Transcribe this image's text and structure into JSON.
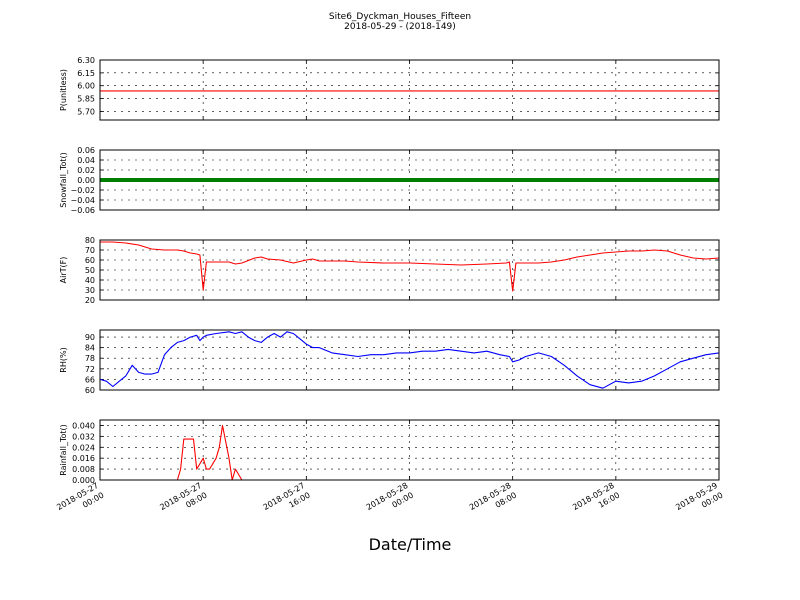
{
  "title": "Site6_Dyckman_Houses_Fifteen",
  "subtitle": "2018-05-29 - (2018-149)",
  "xlabel": "Date/Time",
  "x_ticks": [
    [
      "2018-05-27",
      "00:00"
    ],
    [
      "2018-05-27",
      "08:00"
    ],
    [
      "2018-05-27",
      "16:00"
    ],
    [
      "2018-05-28",
      "00:00"
    ],
    [
      "2018-05-28",
      "08:00"
    ],
    [
      "2018-05-28",
      "16:00"
    ],
    [
      "2018-05-29",
      "00:00"
    ]
  ],
  "chart_data": [
    {
      "type": "line",
      "ylabel": "P(unitless)",
      "ylim": [
        5.6,
        6.3
      ],
      "yticks": [
        "6.30",
        "6.15",
        "6.00",
        "5.85",
        "5.70"
      ],
      "ytick_values": [
        6.3,
        6.15,
        6.0,
        5.85,
        5.7
      ],
      "grid": true,
      "color": "#ff0000",
      "x_hours": [
        0,
        48
      ],
      "values": [
        5.94,
        5.94
      ]
    },
    {
      "type": "scatter",
      "ylabel": "Snowfall_Tot()",
      "ylim": [
        -0.06,
        0.06
      ],
      "yticks": [
        "0.06",
        "0.04",
        "0.02",
        "0.00",
        "−0.02",
        "−0.04",
        "−0.06"
      ],
      "ytick_values": [
        0.06,
        0.04,
        0.02,
        0.0,
        -0.02,
        -0.04,
        -0.06
      ],
      "grid": true,
      "color": "#007f00",
      "x_hours": [
        0,
        48
      ],
      "values": [
        0.0,
        0.0
      ]
    },
    {
      "type": "line",
      "ylabel": "AirT(F)",
      "ylim": [
        20,
        80
      ],
      "yticks": [
        "80",
        "70",
        "60",
        "50",
        "40",
        "30",
        "20"
      ],
      "ytick_values": [
        80,
        70,
        60,
        50,
        40,
        30,
        20
      ],
      "grid": true,
      "color": "#ff0000",
      "x_hours": [
        0,
        1,
        2,
        3,
        4,
        5,
        6,
        6.5,
        7,
        7.5,
        7.75,
        8,
        8.25,
        9,
        10,
        10.5,
        11,
        12,
        12.5,
        13,
        14,
        15,
        16,
        16.5,
        17,
        18,
        19,
        20,
        22,
        24,
        26,
        28,
        30,
        31.5,
        31.75,
        32,
        32.25,
        33,
        34,
        35,
        36,
        37,
        38,
        39,
        40,
        41,
        42,
        43,
        44,
        45,
        46,
        47,
        48
      ],
      "values": [
        78,
        78,
        77,
        75,
        71,
        70,
        70,
        69,
        67,
        66,
        65,
        30,
        58,
        58,
        58,
        56,
        57,
        62,
        63,
        61,
        60,
        57,
        60,
        61,
        59,
        59,
        59,
        58,
        57,
        57,
        56,
        55,
        56,
        57,
        58,
        29,
        57,
        57,
        57,
        58,
        60,
        63,
        65,
        67,
        68,
        69,
        69,
        70,
        69,
        65,
        62,
        61,
        62
      ]
    },
    {
      "type": "line",
      "ylabel": "RH(%)",
      "ylim": [
        60,
        94
      ],
      "yticks": [
        "90",
        "84",
        "78",
        "72",
        "66",
        "60"
      ],
      "ytick_values": [
        90,
        84,
        78,
        72,
        66,
        60
      ],
      "grid": true,
      "color": "#0000ff",
      "x_hours": [
        0,
        0.5,
        1,
        1.5,
        2,
        2.5,
        3,
        3.5,
        4,
        4.5,
        5,
        5.5,
        6,
        6.5,
        7,
        7.5,
        7.75,
        8,
        8.25,
        9,
        10,
        10.5,
        11,
        11.5,
        12,
        12.5,
        13,
        13.5,
        14,
        14.5,
        15,
        15.5,
        16,
        16.5,
        17,
        18,
        19,
        20,
        21,
        22,
        23,
        24,
        25,
        26,
        27,
        28,
        29,
        30,
        31,
        31.75,
        32,
        32.5,
        33,
        34,
        35,
        36,
        37,
        38,
        39,
        40,
        41,
        42,
        43,
        44,
        45,
        46,
        47,
        48
      ],
      "values": [
        66,
        65,
        62,
        65,
        68,
        74,
        70,
        69,
        69,
        70,
        80,
        84,
        87,
        88,
        90,
        91,
        88,
        90,
        91,
        92,
        93,
        92,
        93,
        90,
        88,
        87,
        90,
        92,
        90,
        93,
        92,
        89,
        86,
        84,
        84,
        81,
        80,
        79,
        80,
        80,
        81,
        81,
        82,
        82,
        83,
        82,
        81,
        82,
        80,
        79,
        76,
        77,
        79,
        81,
        79,
        74,
        68,
        63,
        61,
        65,
        64,
        65,
        68,
        72,
        76,
        78,
        80,
        81
      ]
    },
    {
      "type": "line",
      "ylabel": "Rainfall_Tot()",
      "ylim": [
        0,
        0.044
      ],
      "yticks": [
        "0.040",
        "0.032",
        "0.024",
        "0.016",
        "0.008",
        "0.000"
      ],
      "ytick_values": [
        0.04,
        0.032,
        0.024,
        0.016,
        0.008,
        0.0
      ],
      "grid": true,
      "color": "#ff0000",
      "x_hours": [
        0,
        6,
        6.25,
        6.5,
        7,
        7.25,
        7.5,
        8,
        8.25,
        8.5,
        9,
        9.25,
        9.5,
        10,
        10.25,
        10.5,
        11,
        11.25,
        11.5,
        12,
        48
      ],
      "values": [
        0.0,
        0.0,
        0.008,
        0.03,
        0.03,
        0.03,
        0.008,
        0.016,
        0.008,
        0.008,
        0.016,
        0.024,
        0.04,
        0.016,
        0.0,
        0.008,
        0.0,
        0.0,
        0.0,
        0.0,
        0.0
      ]
    }
  ]
}
